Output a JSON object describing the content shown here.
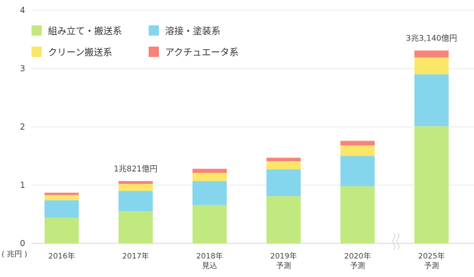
{
  "chart_data": {
    "type": "bar",
    "stacked": true,
    "categories": [
      "2016年",
      "2017年",
      "2018年",
      "2019年",
      "2020年",
      "2025年"
    ],
    "category_sublabels": [
      "",
      "",
      "見込",
      "予測",
      "予測",
      "予測"
    ],
    "y_unit_label": "( 兆円 )",
    "yticks": [
      0,
      1,
      2,
      3,
      4
    ],
    "ylim": [
      0,
      4
    ],
    "grid": true,
    "axis_break_between": [
      "2020年",
      "2025年"
    ],
    "series": [
      {
        "name": "組み立て・搬送系",
        "color": "#c2e97f",
        "values": [
          0.44,
          0.55,
          0.66,
          0.81,
          0.98,
          2.01
        ]
      },
      {
        "name": "溶接・塗装系",
        "color": "#85d6ec",
        "values": [
          0.3,
          0.35,
          0.41,
          0.46,
          0.52,
          0.89
        ]
      },
      {
        "name": "クリーン搬送系",
        "color": "#fce66a",
        "values": [
          0.09,
          0.12,
          0.14,
          0.14,
          0.18,
          0.29
        ]
      },
      {
        "name": "アクチュエータ系",
        "color": "#f7837a",
        "values": [
          0.04,
          0.05,
          0.07,
          0.06,
          0.08,
          0.12
        ]
      }
    ],
    "annotations": [
      {
        "category": "2017年",
        "text": "1兆821億円"
      },
      {
        "category": "2025年",
        "text": "3兆3,140億円"
      }
    ],
    "legend_position": "top-left",
    "legend_rows": [
      [
        "組み立て・搬送系",
        "溶接・塗装系"
      ],
      [
        "クリーン搬送系",
        "アクチュエータ系"
      ]
    ]
  }
}
